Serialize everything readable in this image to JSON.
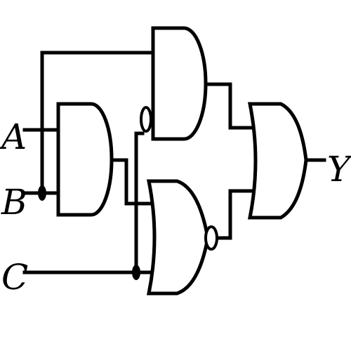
{
  "labels": {
    "input_a": "A",
    "input_b": "B",
    "input_c": "C",
    "output_y": "Y"
  },
  "gates": [
    {
      "id": "and-gate-top",
      "kind": "AND",
      "inverted_input": true
    },
    {
      "id": "and-gate-middle",
      "kind": "AND",
      "inverted_input": false
    },
    {
      "id": "nor-gate-bottom",
      "kind": "NOR",
      "inverted_output": true
    },
    {
      "id": "or-gate-output",
      "kind": "OR",
      "inverted_output": false
    }
  ],
  "colors": {
    "line": "#000000",
    "background": "#ffffff"
  }
}
